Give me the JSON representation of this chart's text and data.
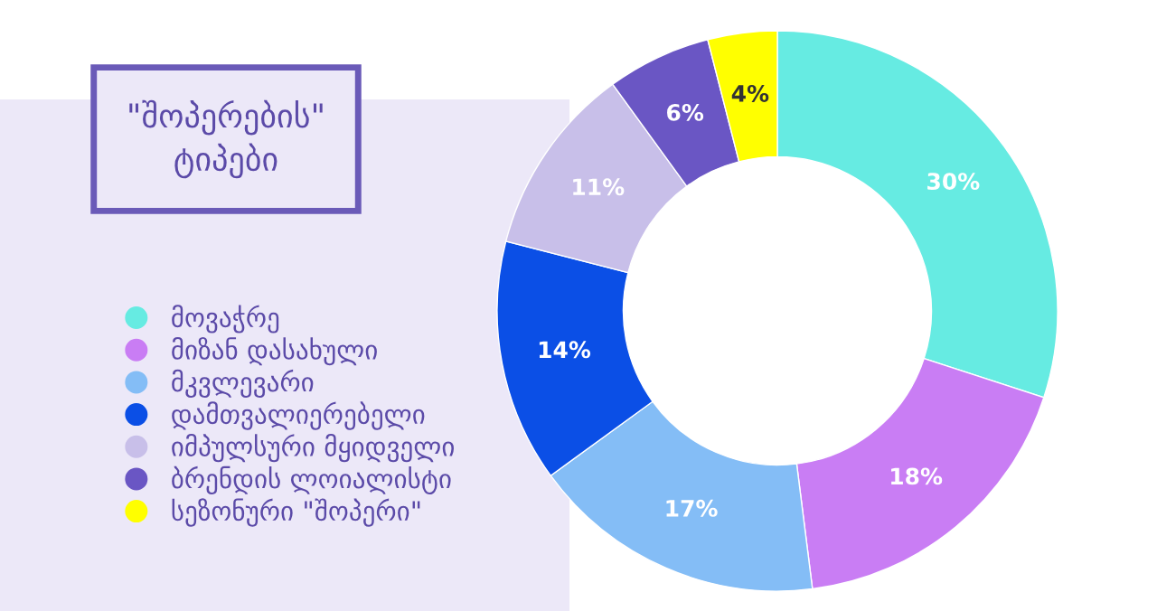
{
  "chart_data": {
    "type": "donut",
    "title": "\"შოპერების\"\nტიპები",
    "categories": [
      "მოვაჭრე",
      "მიზან დასახული",
      "მკვლევარი",
      "დამთვალიერებელი",
      "იმპულსური მყიდველი",
      "ბრენდის ლოიალისტი",
      "სეზონური \"შოპერი\""
    ],
    "values": [
      30,
      18,
      17,
      14,
      11,
      6,
      4
    ],
    "colors": [
      "#66ebe2",
      "#c97df4",
      "#84bdf6",
      "#0b4fe6",
      "#c8bfe9",
      "#6a56c4",
      "#ffff00"
    ],
    "value_labels": [
      "30%",
      "18%",
      "17%",
      "14%",
      "11%",
      "6%",
      "4%"
    ],
    "legend": "left"
  }
}
